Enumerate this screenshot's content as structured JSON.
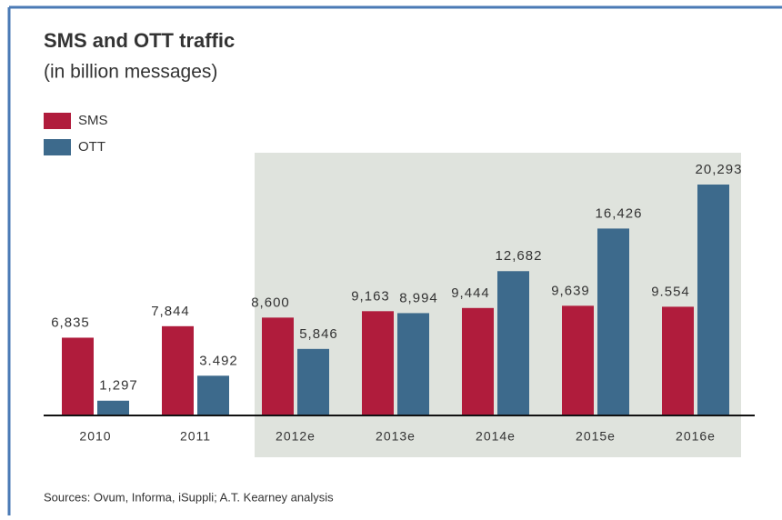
{
  "chart_data": {
    "type": "bar",
    "title": "SMS and OTT traffic",
    "subtitle": "(in billion messages)",
    "categories": [
      "2010",
      "2011",
      "2012e",
      "2013e",
      "2014e",
      "2015e",
      "2016e"
    ],
    "series": [
      {
        "name": "SMS",
        "color": "#b01c3c",
        "values": [
          6835,
          7844,
          8600,
          9163,
          9444,
          9639,
          9554
        ],
        "value_labels": [
          "6,835",
          "7,844",
          "8,600",
          "9,163",
          "9,444",
          "9,639",
          "9.554"
        ]
      },
      {
        "name": "OTT",
        "color": "#3d6a8c",
        "values": [
          1297,
          3492,
          5846,
          8994,
          12682,
          16426,
          20293
        ],
        "value_labels": [
          "1,297",
          "3.492",
          "5,846",
          "8,994",
          "12,682",
          "16,426",
          "20,293"
        ]
      }
    ],
    "source": "Sources: Ovum, Informa, iSuppli; A.T. Kearney analysis"
  }
}
